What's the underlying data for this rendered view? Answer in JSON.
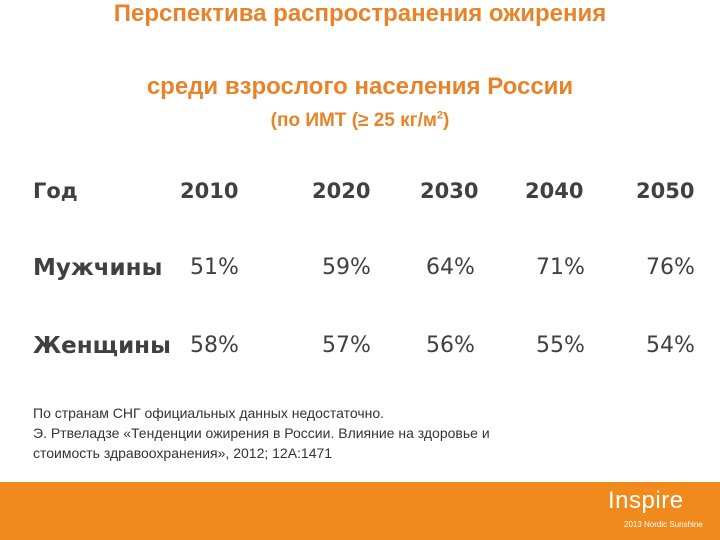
{
  "title": {
    "line1": "Перспектива распространения ожирения",
    "line2": "среди взрослого населения России",
    "line3_main": "(по ИМТ (≥ 25 кг/м",
    "line3_sup": "2",
    "line3_end": ")"
  },
  "table": {
    "header_label": "Год",
    "years": [
      "2010",
      "2020",
      "2030",
      "2040",
      "2050"
    ],
    "rows": [
      {
        "label": "Мужчины",
        "values": [
          "51%",
          "59%",
          "64%",
          "71%",
          "76%"
        ]
      },
      {
        "label": "Женщины",
        "values": [
          "58%",
          "57%",
          "56%",
          "55%",
          "54%"
        ]
      }
    ]
  },
  "note": {
    "line1": "По странам СНГ официальных данных недостаточно.",
    "line2": "Э. Ртвеладзе «Тенденции ожирения в России. Влияние на здоровье и",
    "line3": "стоимость здравоохранения», 2012; 12А:1471"
  },
  "brand": {
    "name": "Inspire",
    "subtitle": "2013 Nordic Sunshine"
  },
  "colors": {
    "accent": "#E8832A",
    "footer": "#F08A1C",
    "text": "#404040"
  }
}
